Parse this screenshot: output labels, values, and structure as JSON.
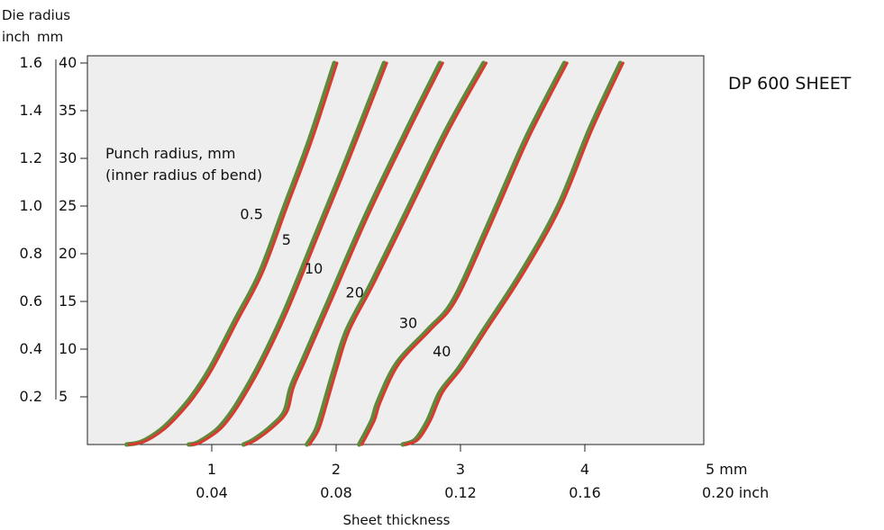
{
  "chart_data": {
    "type": "line",
    "title": "DP 600 SHEET",
    "xlabel": "Sheet thickness",
    "ylabel_line1": "Die radius",
    "ylabel_units": [
      "inch",
      "mm"
    ],
    "legend_title": [
      "Punch radius, mm",
      "(inner radius of bend)"
    ],
    "xlim": [
      -1,
      5
    ],
    "ylim": [
      0,
      40
    ],
    "x_ticks_mm": [
      {
        "value": 1,
        "label": "1"
      },
      {
        "value": 2,
        "label": "2"
      },
      {
        "value": 3,
        "label": "3"
      },
      {
        "value": 4,
        "label": "4"
      },
      {
        "value": 5,
        "label": "5 mm"
      }
    ],
    "x_ticks_inch": [
      "0.04",
      "0.08",
      "0.12",
      "0.16",
      "0.20 inch"
    ],
    "y_ticks_mm": [
      {
        "value": 5,
        "label": "5"
      },
      {
        "value": 10,
        "label": "10"
      },
      {
        "value": 15,
        "label": "15"
      },
      {
        "value": 20,
        "label": "20"
      },
      {
        "value": 25,
        "label": "25"
      },
      {
        "value": 30,
        "label": "30"
      },
      {
        "value": 35,
        "label": "35"
      },
      {
        "value": 40,
        "label": "40"
      }
    ],
    "y_ticks_inch": [
      "0.2",
      "0.4",
      "0.6",
      "0.8",
      "1.0",
      "1.2",
      "1.4",
      "1.6"
    ],
    "series_colors": {
      "main": "#d83a30",
      "shadow": "#5f8a3c"
    },
    "background": "#eeeeee",
    "series": [
      {
        "name": "0.5",
        "label_at": {
          "x": 1.32,
          "y": 24.2
        },
        "points": [
          [
            0.33,
            0
          ],
          [
            0.45,
            0.3
          ],
          [
            0.6,
            1.5
          ],
          [
            0.72,
            3
          ],
          [
            0.85,
            5
          ],
          [
            1.0,
            8
          ],
          [
            1.2,
            13
          ],
          [
            1.4,
            18
          ],
          [
            1.6,
            25
          ],
          [
            1.8,
            32
          ],
          [
            2.0,
            40
          ]
        ]
      },
      {
        "name": "5",
        "label_at": {
          "x": 1.6,
          "y": 21.5
        },
        "points": [
          [
            0.83,
            0
          ],
          [
            0.9,
            0.2
          ],
          [
            1.05,
            1.5
          ],
          [
            1.15,
            3
          ],
          [
            1.25,
            5
          ],
          [
            1.4,
            8.5
          ],
          [
            1.6,
            14
          ],
          [
            1.85,
            22
          ],
          [
            2.1,
            30
          ],
          [
            2.4,
            40
          ]
        ]
      },
      {
        "name": "10",
        "label_at": {
          "x": 1.82,
          "y": 18.5
        },
        "points": [
          [
            1.27,
            0
          ],
          [
            1.35,
            0.5
          ],
          [
            1.5,
            2
          ],
          [
            1.6,
            3.5
          ],
          [
            1.65,
            6
          ],
          [
            1.75,
            9
          ],
          [
            1.95,
            15
          ],
          [
            2.25,
            24
          ],
          [
            2.6,
            33.5
          ],
          [
            2.85,
            40
          ]
        ]
      },
      {
        "name": "20",
        "label_at": {
          "x": 2.15,
          "y": 16
        },
        "points": [
          [
            1.78,
            0
          ],
          [
            1.85,
            1.5
          ],
          [
            1.9,
            3.5
          ],
          [
            2.0,
            8
          ],
          [
            2.1,
            12
          ],
          [
            2.3,
            17
          ],
          [
            2.6,
            25
          ],
          [
            2.9,
            33
          ],
          [
            3.2,
            40
          ]
        ]
      },
      {
        "name": "30",
        "label_at": {
          "x": 2.58,
          "y": 12.8
        },
        "points": [
          [
            2.2,
            0
          ],
          [
            2.3,
            2.5
          ],
          [
            2.35,
            4.5
          ],
          [
            2.5,
            8.5
          ],
          [
            2.75,
            12
          ],
          [
            2.95,
            15
          ],
          [
            3.2,
            22
          ],
          [
            3.5,
            31
          ],
          [
            3.65,
            35
          ],
          [
            3.85,
            40
          ]
        ]
      },
      {
        "name": "40",
        "label_at": {
          "x": 2.85,
          "y": 9.8
        },
        "points": [
          [
            2.55,
            0
          ],
          [
            2.65,
            0.5
          ],
          [
            2.75,
            2.5
          ],
          [
            2.85,
            5.5
          ],
          [
            3.0,
            8
          ],
          [
            3.2,
            12
          ],
          [
            3.5,
            18
          ],
          [
            3.8,
            25
          ],
          [
            4.05,
            33
          ],
          [
            4.3,
            40
          ]
        ]
      }
    ]
  }
}
